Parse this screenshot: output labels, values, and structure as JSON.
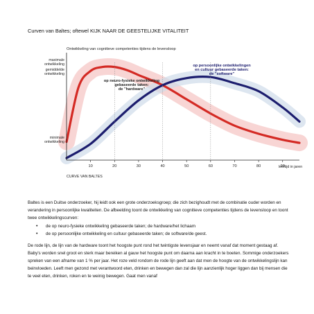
{
  "heading": "Curven van Baltes; oftewel KIJK NAAR DE GEESTELIJKE VITALITEIT",
  "chart_data": {
    "type": "line",
    "title": "Ontwikkeling van cognitieve competenties tijdens de levensloop",
    "xlabel": "CURVE VAN BALTES",
    "x_unit_label": "leeftijd in jaren",
    "x_ticks": [
      10,
      20,
      30,
      40,
      50,
      60,
      70,
      80,
      90
    ],
    "xlim": [
      0,
      97
    ],
    "y_levels": {
      "top": "maximale ontwikkeling",
      "upper": "gemiddelde ontwikkeling",
      "bottom": "minimale ontwikkeling"
    },
    "series": [
      {
        "name": "op neuro-fysieke ontwikkeling gebaseerde taken: de \"hardware\"",
        "color": "#d42a24",
        "points": [
          [
            0,
            0.16
          ],
          [
            5,
            0.7
          ],
          [
            10,
            0.86
          ],
          [
            15,
            0.9
          ],
          [
            20,
            0.9
          ],
          [
            25,
            0.87
          ],
          [
            30,
            0.82
          ],
          [
            40,
            0.72
          ],
          [
            50,
            0.58
          ],
          [
            60,
            0.44
          ],
          [
            70,
            0.32
          ],
          [
            80,
            0.24
          ],
          [
            90,
            0.18
          ],
          [
            97,
            0.15
          ]
        ]
      },
      {
        "name": "op persoonlijke ontwikkelingen en cultuur gebaseerde taken: de \"software\"",
        "color": "#1c1d6e",
        "points": [
          [
            0,
            0.0
          ],
          [
            10,
            0.14
          ],
          [
            20,
            0.36
          ],
          [
            30,
            0.57
          ],
          [
            40,
            0.72
          ],
          [
            50,
            0.79
          ],
          [
            60,
            0.8
          ],
          [
            70,
            0.74
          ],
          [
            80,
            0.66
          ],
          [
            90,
            0.5
          ],
          [
            97,
            0.36
          ]
        ]
      }
    ]
  },
  "paragraph1": "Baltes is een Duitse onderzoeker, hij leidt ook een grote onderzoeksgroep; die zich bezighoudt met de combinatie ouder worden en verandering in persoonlijke kwaliteiten. De afbeelding toont de ontwikkeling van cognitieve competenties tijdens de levensloop en toont twee ontwikkelingscurven:",
  "bullets": [
    "de op neuro-fysieke ontwikkeling gebaseerde taken; de hardware/het lichaam",
    "de op persoonlijke ontwikkeling en cultuur gebaseerde taken; de software/de geest."
  ],
  "paragraph2": "De rode lijn, de lijn van de hardware toont het hoogste punt rond het twintigste levensjaar en neemt vanaf dat moment gestaag af. Baby's worden snel groot en sterk maar bereiken al gauw het hoogste punt om daarna aan kracht in te boeten. Sommige onderzoekers spreken van een afname van 1 % per jaar. Het roze veld rondom de rode lijn geeft aan dat men de hoogte van de ontwikkelingslijn kan beinvloeden. Leeft men gezond met verantwoord eten, drinken en bewegen dan zal die lijn aanzienlijk hoger liggen dan bij mensen die te veel eten, drinken, roken en te weinig bewegen. Gaat men vanaf"
}
